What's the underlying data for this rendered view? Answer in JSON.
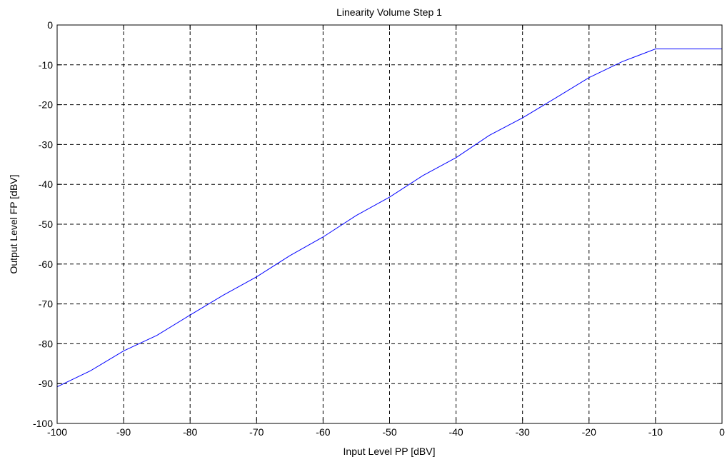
{
  "chart_data": {
    "type": "line",
    "title": "Linearity Volume Step 1",
    "xlabel": "Input Level PP [dBV]",
    "ylabel": "Output Level FP [dBV]",
    "xlim": [
      -100,
      0
    ],
    "ylim": [
      -100,
      0
    ],
    "xticks": [
      -100,
      -90,
      -80,
      -70,
      -60,
      -50,
      -40,
      -30,
      -20,
      -10,
      0
    ],
    "yticks": [
      0,
      -10,
      -20,
      -30,
      -40,
      -50,
      -60,
      -70,
      -80,
      -90,
      -100
    ],
    "grid": true,
    "grid_style": "dashed",
    "colors": {
      "line": "#0000ff",
      "axes": "#000000",
      "grid": "#000000",
      "background": "#ffffff"
    },
    "series": [
      {
        "x": [
          -100,
          -95,
          -90,
          -85,
          -80,
          -75,
          -70,
          -65,
          -60,
          -55,
          -50,
          -45,
          -40,
          -35,
          -30,
          -25,
          -20,
          -15,
          -10,
          -5,
          0
        ],
        "values": [
          -90.8,
          -86.8,
          -81.8,
          -77.9,
          -72.8,
          -67.8,
          -63.2,
          -57.9,
          -53.2,
          -47.8,
          -43.2,
          -37.8,
          -33.3,
          -27.7,
          -23.3,
          -18.3,
          -13.2,
          -9.2,
          -6.0,
          -6.0,
          -6.0
        ]
      }
    ]
  }
}
